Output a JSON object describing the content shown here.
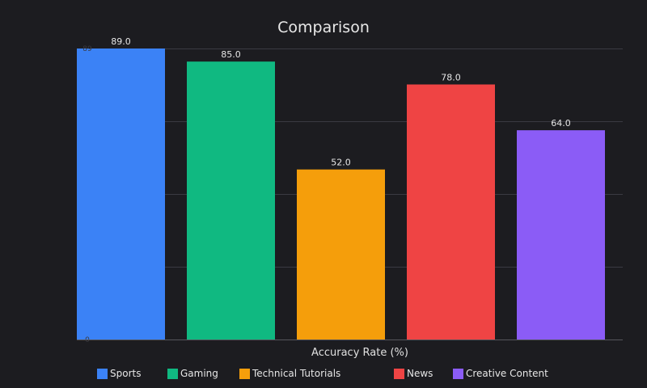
{
  "chart_data": {
    "type": "bar",
    "title": "Comparison",
    "xlabel": "Accuracy Rate (%)",
    "ylabel": "",
    "categories": [
      "Sports",
      "Gaming",
      "Technical Tutorials",
      "News",
      "Creative Content"
    ],
    "values": [
      89.0,
      85.0,
      52.0,
      78.0,
      64.0
    ],
    "value_labels": [
      "89.0",
      "85.0",
      "52.0",
      "78.0",
      "64.0"
    ],
    "colors": [
      "#3b82f6",
      "#10b981",
      "#f59e0b",
      "#ef4444",
      "#8b5cf6"
    ],
    "ylim": [
      0,
      89
    ],
    "y_tick_labels": [
      "0",
      "89"
    ],
    "grid": true,
    "legend": "bottom"
  }
}
